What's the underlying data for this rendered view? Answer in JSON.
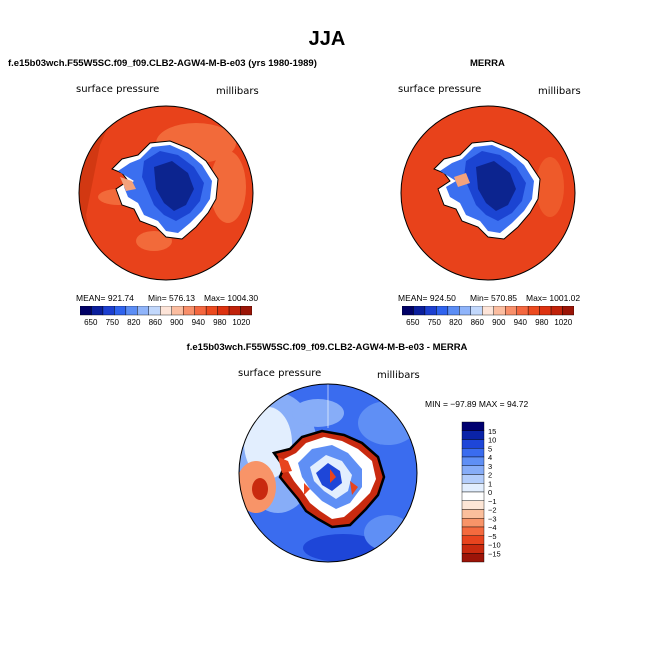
{
  "title": "JJA",
  "panel1": {
    "title": "f.e15b03wch.F55W5SC.f09_f09.CLB2-AGW4-M-B-e03 (yrs 1980-1989)",
    "variable": "surface pressure",
    "units": "millibars",
    "mean": "MEAN= 921.74",
    "min": "Min= 576.13",
    "max": "Max= 1004.30"
  },
  "panel2": {
    "title": "MERRA",
    "variable": "surface pressure",
    "units": "millibars",
    "mean": "MEAN= 924.50",
    "min": "Min= 570.85",
    "max": "Max= 1001.02"
  },
  "panel3": {
    "title": "f.e15b03wch.F55W5SC.f09_f09.CLB2-AGW4-M-B-e03 - MERRA",
    "variable": "surface pressure",
    "units": "millibars",
    "minmax": "MIN = −97.89  MAX =  94.72"
  },
  "colorbar_top": {
    "colors": [
      "#000066",
      "#0a1e9c",
      "#1c3fd0",
      "#2f63ee",
      "#5b8df5",
      "#8fb4fa",
      "#c2d8fc",
      "#fde4d8",
      "#fbbda0",
      "#f88f6a",
      "#f4673f",
      "#ec4a1f",
      "#dd3210",
      "#c0220a",
      "#9a1406"
    ],
    "tick_labels": [
      "650",
      "750",
      "820",
      "860",
      "900",
      "940",
      "980",
      "1020"
    ]
  },
  "colorbar_diff": {
    "colors": [
      "#000070",
      "#0a23a8",
      "#1e46d8",
      "#3a6cef",
      "#5f8ff5",
      "#87adf8",
      "#b3cdfb",
      "#e2eefe",
      "#ffffff",
      "#fde6d6",
      "#fbbf9c",
      "#f89468",
      "#f46a3e",
      "#e8441e",
      "#c92a0f",
      "#9c1408"
    ],
    "tick_labels": [
      "15",
      "10",
      "5",
      "4",
      "3",
      "2",
      "1",
      "0",
      "−1",
      "−2",
      "−3",
      "−4",
      "−5",
      "−10",
      "−15"
    ]
  }
}
